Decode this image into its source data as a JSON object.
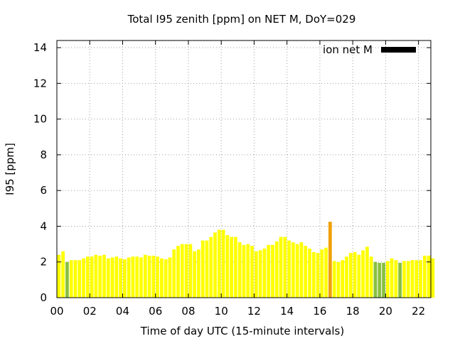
{
  "chart_data": {
    "type": "bar",
    "title": "Total I95 zenith [ppm] on NET M, DoY=029",
    "xlabel": "Time of day UTC (15-minute intervals)",
    "ylabel": "I95 [ppm]",
    "xlim": [
      0,
      22.75
    ],
    "ylim": [
      0,
      14.4
    ],
    "xticks": [
      "00",
      "02",
      "04",
      "06",
      "08",
      "10",
      "12",
      "14",
      "16",
      "18",
      "20",
      "22"
    ],
    "yticks": [
      "0",
      "2",
      "4",
      "6",
      "8",
      "10",
      "12",
      "14"
    ],
    "grid": true,
    "legend": {
      "position": "top-right",
      "entries": [
        {
          "name": "ion net M",
          "color": "#000000"
        }
      ]
    },
    "interval_hours": 0.25,
    "values": [
      2.4,
      2.6,
      2.0,
      2.1,
      2.1,
      2.1,
      2.2,
      2.3,
      2.3,
      2.4,
      2.35,
      2.4,
      2.2,
      2.25,
      2.3,
      2.2,
      2.15,
      2.25,
      2.3,
      2.3,
      2.25,
      2.4,
      2.35,
      2.35,
      2.3,
      2.2,
      2.15,
      2.25,
      2.7,
      2.9,
      3.0,
      3.0,
      3.0,
      2.6,
      2.7,
      3.2,
      3.2,
      3.4,
      3.65,
      3.8,
      3.8,
      3.5,
      3.4,
      3.4,
      3.1,
      2.95,
      3.0,
      2.9,
      2.6,
      2.65,
      2.75,
      2.95,
      2.95,
      3.15,
      3.4,
      3.4,
      3.2,
      3.1,
      3.0,
      3.1,
      2.9,
      2.75,
      2.55,
      2.5,
      2.7,
      2.8,
      4.25,
      2.05,
      2.0,
      2.1,
      2.3,
      2.5,
      2.55,
      2.4,
      2.65,
      2.85,
      2.3,
      2.0,
      1.95,
      1.95,
      2.05,
      2.2,
      2.1,
      1.95,
      2.05,
      2.05,
      2.1,
      2.1,
      2.1,
      2.35,
      2.35,
      2.2
    ],
    "bar_colors": {
      "default": "#ffff00",
      "highlight_orange": "#f0a000",
      "green": "#88c040",
      "orange_indices": [
        66
      ],
      "green_indices": [
        2,
        77,
        78,
        79,
        83
      ]
    }
  }
}
